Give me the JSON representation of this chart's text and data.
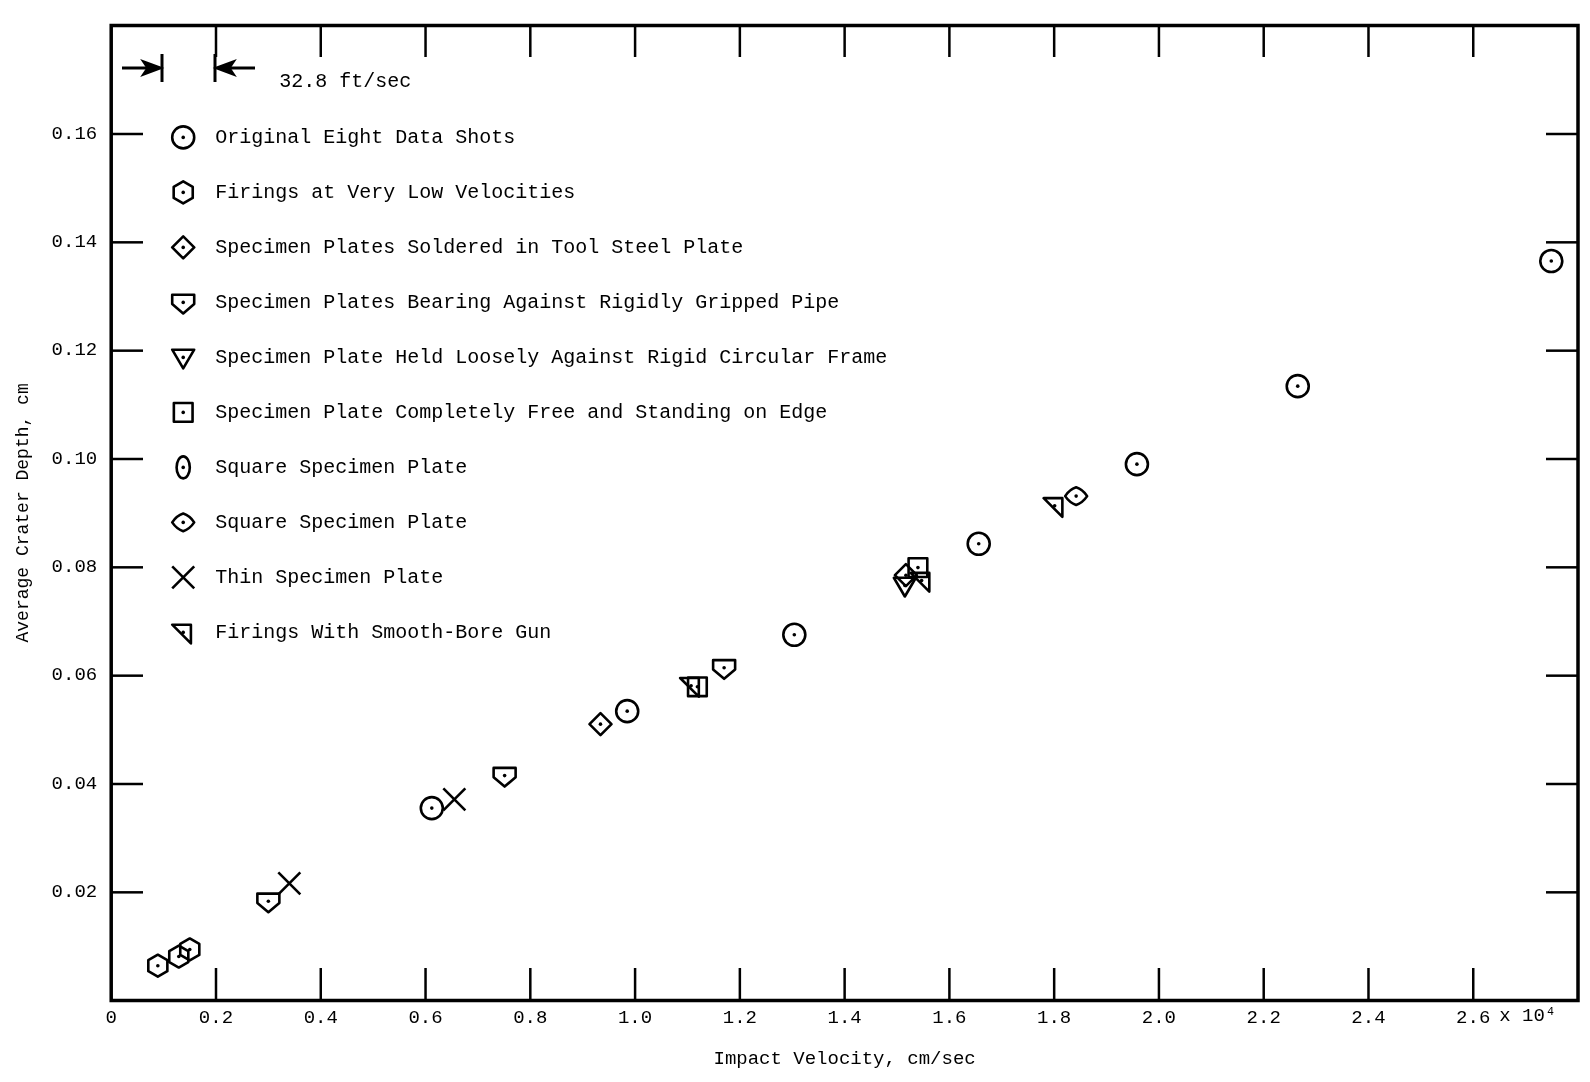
{
  "chart_data": {
    "type": "scatter",
    "xlabel": "Impact Velocity, cm/sec",
    "ylabel": "Average Crater Depth, cm",
    "xlim": [
      0,
      2.8
    ],
    "xticks": [
      0,
      0.2,
      0.4,
      0.6,
      0.8,
      {
        "value": 1,
        "label": "1.0"
      },
      1.2,
      1.4,
      1.6,
      1.8,
      {
        "value": 2,
        "label": "2.0"
      },
      2.2,
      2.4,
      2.6
    ],
    "ylim": [
      0,
      0.18
    ],
    "yticks": [
      0.02,
      0.04,
      0.06,
      0.08,
      {
        "value": 0.1,
        "label": "0.10"
      },
      0.12,
      0.14,
      0.16
    ],
    "grid": false,
    "legend": "top left",
    "annotations": [
      "32.8 ft/sec",
      "x 10⁴"
    ],
    "series": [
      {
        "name": "Original Eight Data Shots",
        "color": "#000000",
        "marker": "circle",
        "x": [
          0.612,
          0.985,
          1.304,
          1.656,
          1.958,
          2.265,
          2.749
        ],
        "values": [
          0.0355,
          0.0534,
          0.0675,
          0.0843,
          0.099,
          0.1134,
          0.1365
        ]
      },
      {
        "name": "Firings at Very Low Velocities",
        "color": "#000000",
        "x": [
          0.089,
          0.129,
          0.15
        ],
        "values": [
          0.0064,
          0.0081,
          0.0094
        ]
      },
      {
        "name": "Specimen Plates Soldered in Tool Steel Plate",
        "color": "#000000",
        "marker": "diamond",
        "x": [
          0.934,
          1.517
        ],
        "values": [
          0.051,
          0.0785
        ]
      },
      {
        "name": "Specimen Plates Bearing Against Rigidly Gripped Pipe",
        "color": "#000000",
        "x": [
          0.3,
          0.751,
          1.17
        ],
        "values": [
          0.0183,
          0.0415,
          0.0614
        ]
      },
      {
        "name": "Specimen Plate Held Loosely Against Rigid Circular Frame",
        "color": "#000000",
        "x": [
          1.515
        ],
        "values": [
          0.0766
        ]
      },
      {
        "name": "Specimen Plate Completely Free and Standing on Edge",
        "color": "#000000",
        "marker": "square",
        "x": [
          1.119,
          1.54
        ],
        "values": [
          0.0579,
          0.0799
        ]
      },
      {
        "name": "Square Specimen Plate",
        "color": "#000000"
      },
      {
        "name": "Square Specimen Plate",
        "color": "#000000",
        "x": [
          1.842
        ],
        "values": [
          0.0931
        ]
      },
      {
        "name": "Thin Specimen Plate",
        "color": "#000000",
        "marker": "cross",
        "x": [
          0.34,
          0.655
        ],
        "values": [
          0.0216,
          0.0371
        ]
      },
      {
        "name": "Firings With Smooth-Bore Gun",
        "color": "#000000",
        "x": [
          1.107,
          1.547,
          1.801
        ],
        "values": [
          0.0581,
          0.0775,
          0.0913
        ]
      }
    ]
  }
}
